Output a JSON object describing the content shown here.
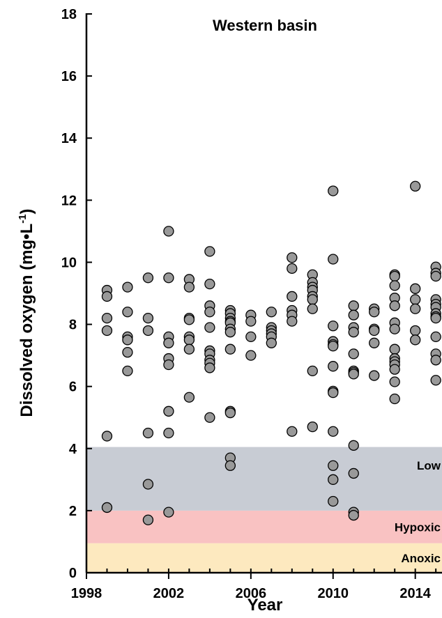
{
  "chart_data": {
    "type": "scatter",
    "title": "Western basin",
    "xlabel": "Year",
    "ylabel": "Dissolved oxygen (mg•L",
    "ylabel_sup": "-1",
    "ylabel_end": ")",
    "xlim": [
      1998,
      2015.3
    ],
    "ylim": [
      0,
      18
    ],
    "x_ticks": [
      1998,
      2002,
      2006,
      2010,
      2014
    ],
    "y_ticks": [
      0,
      2,
      4,
      6,
      8,
      10,
      12,
      14,
      16,
      18
    ],
    "bands": [
      {
        "label": "Anoxic",
        "y0": 0,
        "y1": 0.95,
        "color": "#fde9bf"
      },
      {
        "label": "Hypoxic",
        "y0": 0.95,
        "y1": 2,
        "color": "#f9c2c2"
      },
      {
        "label": "Low",
        "y0": 2,
        "y1": 4.05,
        "color": "#c8ccd4"
      }
    ],
    "point_color": "#999999",
    "points_by_year": [
      {
        "x": 1999,
        "y": [
          9.1,
          8.9,
          8.2,
          7.8,
          4.4,
          2.1
        ]
      },
      {
        "x": 2000,
        "y": [
          9.2,
          8.4,
          7.6,
          7.5,
          7.1,
          6.5
        ]
      },
      {
        "x": 2001,
        "y": [
          9.5,
          8.2,
          7.8,
          4.5,
          2.85,
          1.7
        ]
      },
      {
        "x": 2002,
        "y": [
          11.0,
          9.5,
          7.6,
          7.4,
          6.9,
          6.7,
          5.2,
          4.5,
          1.95
        ]
      },
      {
        "x": 2003,
        "y": [
          9.45,
          9.2,
          8.2,
          8.15,
          7.6,
          7.5,
          7.2,
          5.65
        ]
      },
      {
        "x": 2004,
        "y": [
          10.35,
          9.3,
          8.6,
          8.4,
          7.9,
          7.15,
          7.05,
          6.85,
          6.75,
          6.6,
          5.0
        ]
      },
      {
        "x": 2005,
        "y": [
          8.45,
          8.35,
          8.2,
          8.1,
          8.05,
          7.85,
          7.75,
          7.2,
          5.2,
          5.15,
          3.7,
          3.45
        ]
      },
      {
        "x": 2006,
        "y": [
          8.3,
          8.1,
          7.6,
          7.0
        ]
      },
      {
        "x": 2007,
        "y": [
          8.4,
          7.9,
          7.8,
          7.7,
          7.6,
          7.4
        ]
      },
      {
        "x": 2008,
        "y": [
          10.15,
          9.8,
          8.9,
          8.45,
          8.3,
          8.1,
          4.55
        ]
      },
      {
        "x": 2009,
        "y": [
          9.6,
          9.35,
          9.2,
          9.1,
          8.9,
          8.8,
          8.5,
          6.5,
          4.7
        ]
      },
      {
        "x": 2010,
        "y": [
          12.3,
          10.1,
          7.95,
          7.45,
          7.35,
          7.3,
          6.65,
          5.85,
          5.8,
          4.55,
          3.45,
          3.0,
          2.3
        ]
      },
      {
        "x": 2011,
        "y": [
          8.6,
          8.3,
          7.9,
          7.75,
          7.05,
          6.5,
          6.45,
          6.4,
          4.1,
          3.2,
          1.95,
          1.85
        ]
      },
      {
        "x": 2012,
        "y": [
          8.5,
          8.4,
          7.85,
          7.8,
          7.4,
          6.35
        ]
      },
      {
        "x": 2013,
        "y": [
          9.6,
          9.55,
          9.25,
          8.85,
          8.6,
          8.05,
          7.85,
          7.2,
          6.9,
          6.8,
          6.7,
          6.55,
          6.15,
          5.6
        ]
      },
      {
        "x": 2014,
        "y": [
          12.45,
          9.15,
          8.8,
          8.5,
          7.8,
          7.5
        ]
      },
      {
        "x": 2015,
        "y": [
          9.85,
          9.65,
          9.55,
          8.8,
          8.65,
          8.55,
          8.35,
          8.25,
          8.2,
          7.6,
          7.05,
          6.85,
          6.2
        ]
      }
    ]
  }
}
